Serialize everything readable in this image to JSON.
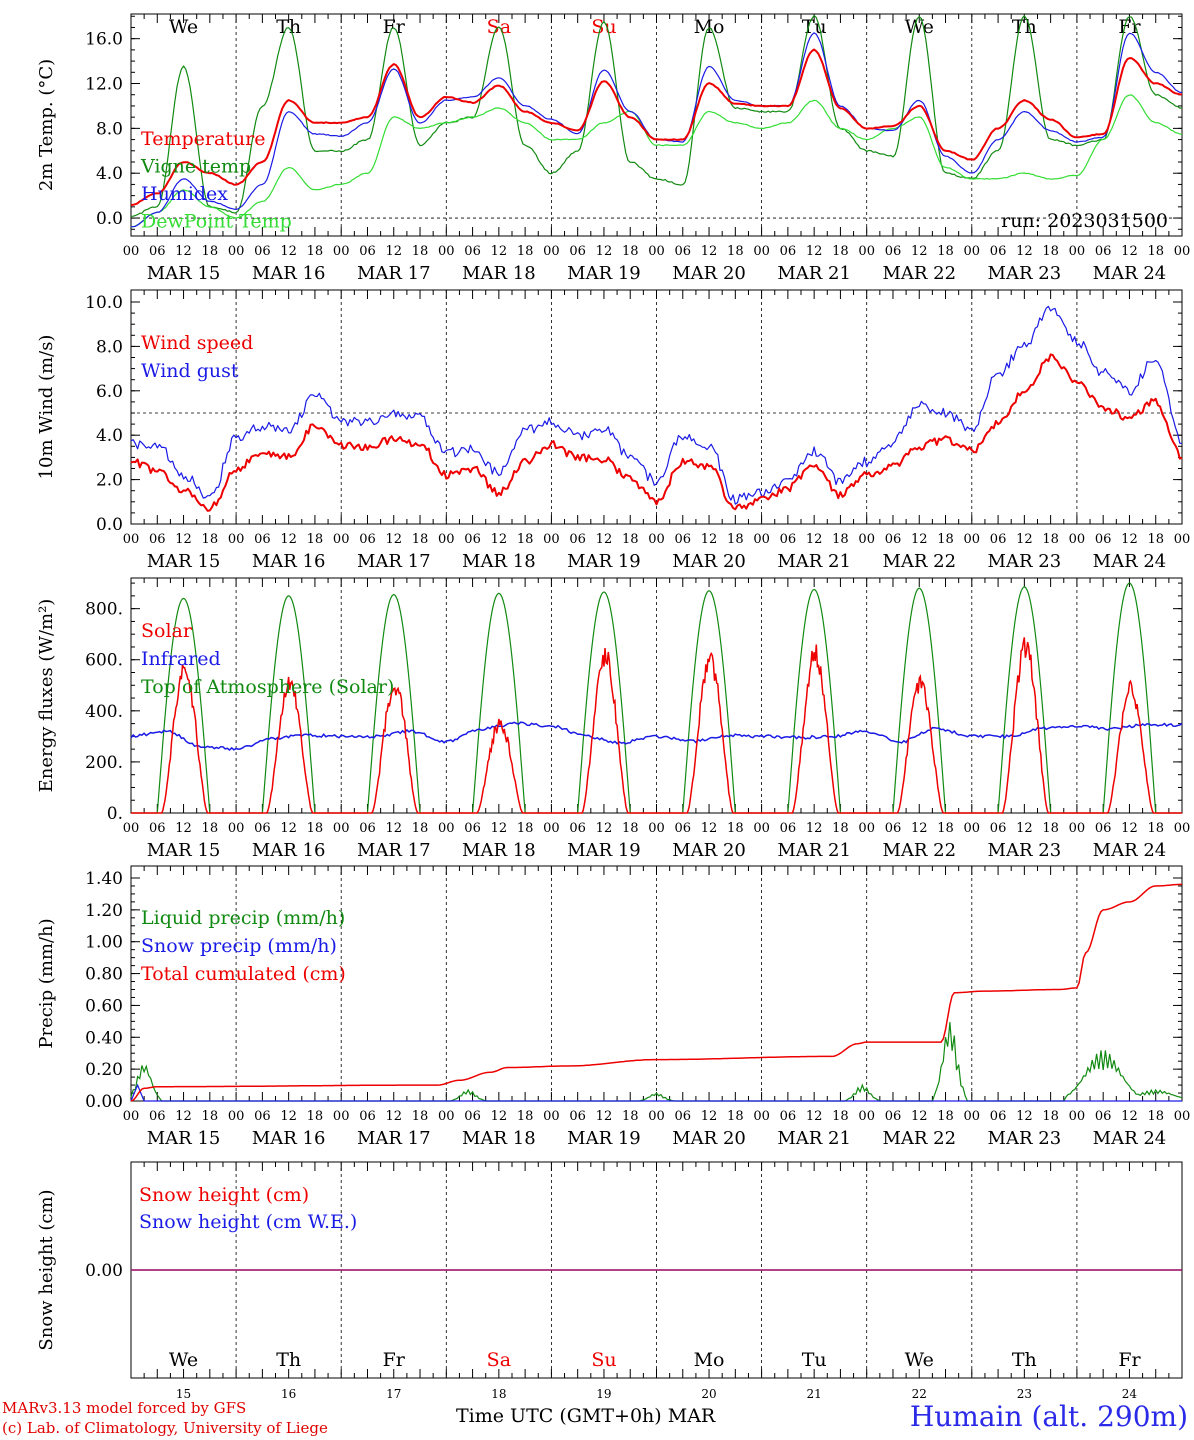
{
  "colors": {
    "red": "#ee0000",
    "green": "#118a11",
    "blue": "#1a1ae6",
    "lightgreen": "#33dd33",
    "purple": "#8a1f8a",
    "black": "#000000"
  },
  "days": [
    "MAR 15",
    "MAR 16",
    "MAR 17",
    "MAR 18",
    "MAR 19",
    "MAR 20",
    "MAR 21",
    "MAR 22",
    "MAR 23",
    "MAR 24"
  ],
  "weekdays": [
    {
      "label": "We",
      "color": "#000000"
    },
    {
      "label": "Th",
      "color": "#000000"
    },
    {
      "label": "Fr",
      "color": "#000000"
    },
    {
      "label": "Sa",
      "color": "#ee0000"
    },
    {
      "label": "Su",
      "color": "#ee0000"
    },
    {
      "label": "Mo",
      "color": "#000000"
    },
    {
      "label": "Tu",
      "color": "#000000"
    },
    {
      "label": "We",
      "color": "#000000"
    },
    {
      "label": "Th",
      "color": "#000000"
    },
    {
      "label": "Fr",
      "color": "#000000"
    }
  ],
  "day_numbers": [
    "15",
    "16",
    "17",
    "18",
    "19",
    "20",
    "21",
    "22",
    "23",
    "24"
  ],
  "hour_ticks": [
    "00",
    "06",
    "12",
    "18"
  ],
  "final_tick": "00",
  "run_label": "run: 2023031500",
  "xlabel": "Time UTC (GMT+0h)",
  "month": "MAR",
  "credit_lines": [
    "MARv3.13 model forced by GFS",
    "(c) Lab. of Climatology, University of Liege"
  ],
  "station": "Humain (alt. 290m)",
  "chart_data": [
    {
      "type": "line",
      "id": "temp",
      "ylabel": "2m Temp. (°C)",
      "ylim": [
        -1.6,
        18.2
      ],
      "ticks": [
        "0.0",
        "4.0",
        "8.0",
        "12.0",
        "16.0"
      ],
      "tick_values": [
        0,
        4,
        8,
        12,
        16
      ],
      "ref_line": 0,
      "x_hours": [
        0,
        6,
        12,
        18,
        24,
        30,
        36,
        42,
        48,
        54,
        60,
        66,
        72,
        78,
        84,
        90,
        96,
        102,
        108,
        114,
        120,
        126,
        132,
        138,
        144,
        150,
        156,
        162,
        168,
        174,
        180,
        186,
        192,
        198,
        204,
        210,
        216,
        222,
        228,
        234,
        240
      ],
      "series": [
        {
          "name": "Temperature",
          "color": "#ee0000",
          "width": 2,
          "values": [
            1.2,
            2.2,
            5.0,
            4.0,
            3.0,
            5.0,
            10.5,
            8.5,
            8.5,
            9.0,
            13.7,
            9.0,
            10.8,
            10.3,
            11.8,
            9.5,
            8.5,
            7.8,
            12.2,
            9.0,
            7.0,
            7.0,
            12.0,
            10.2,
            10.0,
            10.0,
            15.0,
            9.8,
            8.0,
            8.2,
            10.0,
            6.0,
            5.2,
            8.0,
            10.5,
            8.8,
            7.2,
            7.5,
            14.3,
            12.0,
            11.0
          ]
        },
        {
          "name": "Vigne temp",
          "color": "#118a11",
          "width": 1.2,
          "values": [
            0.2,
            1.0,
            13.5,
            1.0,
            0.5,
            10.0,
            17.0,
            6.0,
            6.0,
            7.0,
            17.0,
            6.5,
            8.5,
            9.0,
            17.0,
            6.5,
            4.0,
            6.0,
            17.5,
            5.0,
            3.5,
            3.0,
            17.0,
            9.8,
            9.5,
            9.5,
            18.0,
            8.0,
            6.0,
            5.5,
            18.0,
            4.0,
            3.5,
            6.0,
            18.0,
            7.0,
            6.5,
            7.0,
            18.0,
            11.0,
            9.8
          ]
        },
        {
          "name": "Humidex",
          "color": "#1a1ae6",
          "width": 1.2,
          "values": [
            -0.8,
            0.5,
            3.5,
            1.5,
            0.8,
            3.0,
            9.5,
            7.5,
            7.3,
            8.5,
            13.3,
            8.5,
            10.5,
            10.8,
            12.5,
            10.0,
            8.8,
            7.5,
            13.2,
            9.5,
            7.0,
            6.8,
            13.5,
            10.5,
            10.0,
            10.0,
            16.5,
            10.0,
            8.0,
            7.8,
            10.5,
            5.5,
            4.0,
            7.0,
            9.5,
            7.8,
            6.8,
            7.2,
            16.5,
            13.0,
            11.2
          ]
        },
        {
          "name": "DewPoint Temp",
          "color": "#33dd33",
          "width": 1.2,
          "values": [
            -0.8,
            0.5,
            2.5,
            1.0,
            0.0,
            1.5,
            4.5,
            2.5,
            3.0,
            4.0,
            9.0,
            8.0,
            8.5,
            9.0,
            9.8,
            8.5,
            7.0,
            7.0,
            8.5,
            9.5,
            6.5,
            6.5,
            9.5,
            8.5,
            8.0,
            8.5,
            10.5,
            8.0,
            7.0,
            8.0,
            9.0,
            4.5,
            3.5,
            3.5,
            4.0,
            3.5,
            3.8,
            7.0,
            11.0,
            8.5,
            7.5
          ]
        }
      ],
      "legend": [
        "Temperature",
        "Vigne temp",
        "Humidex",
        "DewPoint Temp"
      ]
    },
    {
      "type": "line",
      "id": "wind",
      "ylabel": "10m Wind (m/s)",
      "ylim": [
        0,
        10.0
      ],
      "ticks": [
        "0.0",
        "2.0",
        "4.0",
        "6.0",
        "8.0",
        "10.0"
      ],
      "tick_values": [
        0,
        2,
        4,
        6,
        8,
        10
      ],
      "ref_line": 5,
      "x_hours": [
        0,
        6,
        12,
        18,
        24,
        30,
        36,
        42,
        48,
        54,
        60,
        66,
        72,
        78,
        84,
        90,
        96,
        102,
        108,
        114,
        120,
        126,
        132,
        138,
        144,
        150,
        156,
        162,
        168,
        174,
        180,
        186,
        192,
        198,
        204,
        210,
        216,
        222,
        228,
        234,
        240
      ],
      "series": [
        {
          "name": "Wind speed",
          "color": "#ee0000",
          "width": 2,
          "values": [
            2.8,
            2.4,
            1.5,
            0.7,
            2.5,
            3.2,
            3.0,
            4.4,
            3.5,
            3.5,
            3.8,
            3.6,
            2.2,
            2.5,
            1.4,
            2.8,
            3.6,
            3.0,
            2.9,
            2.0,
            1.0,
            2.8,
            2.6,
            0.7,
            1.1,
            1.6,
            2.7,
            1.3,
            2.2,
            2.6,
            3.5,
            3.8,
            3.3,
            4.5,
            6.0,
            7.5,
            6.5,
            5.2,
            4.8,
            5.5,
            3.0
          ]
        },
        {
          "name": "Wind gust",
          "color": "#1a1ae6",
          "width": 1.2,
          "values": [
            3.6,
            3.6,
            2.2,
            1.2,
            3.9,
            4.4,
            4.2,
            5.8,
            4.6,
            4.6,
            5.0,
            4.8,
            3.2,
            3.4,
            2.3,
            4.2,
            4.6,
            4.0,
            4.3,
            3.0,
            1.9,
            4.0,
            3.5,
            1.1,
            1.4,
            2.0,
            3.3,
            1.9,
            2.8,
            3.7,
            5.4,
            5.0,
            4.2,
            6.8,
            8.0,
            9.7,
            8.2,
            6.8,
            6.0,
            7.5,
            3.8
          ]
        }
      ],
      "legend": [
        "Wind speed",
        "Wind gust"
      ]
    },
    {
      "type": "line",
      "id": "energy",
      "ylabel": "Energy fluxes (W/m²)",
      "ylim": [
        0,
        920
      ],
      "ticks": [
        "0.",
        "200.",
        "400.",
        "600.",
        "800."
      ],
      "tick_values": [
        0,
        200,
        400,
        600,
        800
      ],
      "solar_peaks": [
        560,
        500,
        500,
        350,
        620,
        600,
        620,
        510,
        650,
        480
      ],
      "toa_peaks": [
        840,
        850,
        855,
        860,
        865,
        870,
        875,
        880,
        885,
        900
      ],
      "infrared_values": [
        300,
        320,
        260,
        250,
        290,
        305,
        300,
        300,
        320,
        280,
        330,
        350,
        340,
        300,
        275,
        300,
        280,
        305,
        300,
        295,
        300,
        320,
        280,
        330,
        300,
        300,
        330,
        340,
        330,
        345,
        345
      ],
      "series": [
        {
          "name": "Solar",
          "color": "#ee0000",
          "width": 1.5
        },
        {
          "name": "Infrared",
          "color": "#1a1ae6",
          "width": 1.5
        },
        {
          "name": "Top of Atmosphere (Solar)",
          "color": "#118a11",
          "width": 1.2
        }
      ],
      "legend": [
        "Solar",
        "Infrared",
        "Top of Atmosphere (Solar)"
      ]
    },
    {
      "type": "line",
      "id": "precip",
      "ylabel": "Precip (mm/h)",
      "ylim": [
        0,
        1.4
      ],
      "ticks": [
        "0.00",
        "0.20",
        "0.40",
        "0.60",
        "0.80",
        "1.00",
        "1.20",
        "1.40"
      ],
      "tick_values": [
        0,
        0.2,
        0.4,
        0.6,
        0.8,
        1.0,
        1.2,
        1.4
      ],
      "cumulated": {
        "x_hours": [
          0,
          3,
          6,
          70,
          75,
          82,
          86,
          100,
          120,
          160,
          166,
          168,
          180,
          185,
          188,
          195,
          212,
          216,
          218,
          222,
          228,
          234,
          240
        ],
        "values": [
          0,
          0.08,
          0.09,
          0.1,
          0.13,
          0.18,
          0.21,
          0.22,
          0.26,
          0.28,
          0.36,
          0.37,
          0.37,
          0.37,
          0.68,
          0.69,
          0.7,
          0.71,
          0.93,
          1.2,
          1.25,
          1.35,
          1.36
        ]
      },
      "liquid_events": [
        {
          "h": 3,
          "v": 0.24
        },
        {
          "h": 77,
          "v": 0.07
        },
        {
          "h": 120,
          "v": 0.05
        },
        {
          "h": 167,
          "v": 0.1
        },
        {
          "h": 187,
          "v": 0.5
        },
        {
          "h": 222,
          "v": 0.32
        },
        {
          "h": 234,
          "v": 0.07
        }
      ],
      "series": [
        {
          "name": "Liquid precip (mm/h)",
          "color": "#118a11",
          "width": 1.2
        },
        {
          "name": "Snow precip (mm/h)",
          "color": "#1a1ae6",
          "width": 1.2
        },
        {
          "name": "Total cumulated (cm)",
          "color": "#ee0000",
          "width": 1.5
        }
      ],
      "legend": [
        "Liquid precip (mm/h)",
        "Snow precip (mm/h)",
        "Total cumulated (cm)"
      ]
    },
    {
      "type": "line",
      "id": "snow",
      "ylabel": "Snow height (cm)",
      "ylim": [
        -1,
        1
      ],
      "ticks": [
        "0.00"
      ],
      "tick_values": [
        0
      ],
      "series": [
        {
          "name": "Snow height (cm)",
          "color": "#ee0000",
          "width": 1.5,
          "values": [
            0,
            0
          ]
        },
        {
          "name": "Snow height (cm W.E.)",
          "color": "#1a1ae6",
          "width": 1.5,
          "values": [
            0,
            0
          ]
        }
      ],
      "legend": [
        "Snow height (cm)",
        "Snow height (cm W.E.)"
      ]
    }
  ]
}
